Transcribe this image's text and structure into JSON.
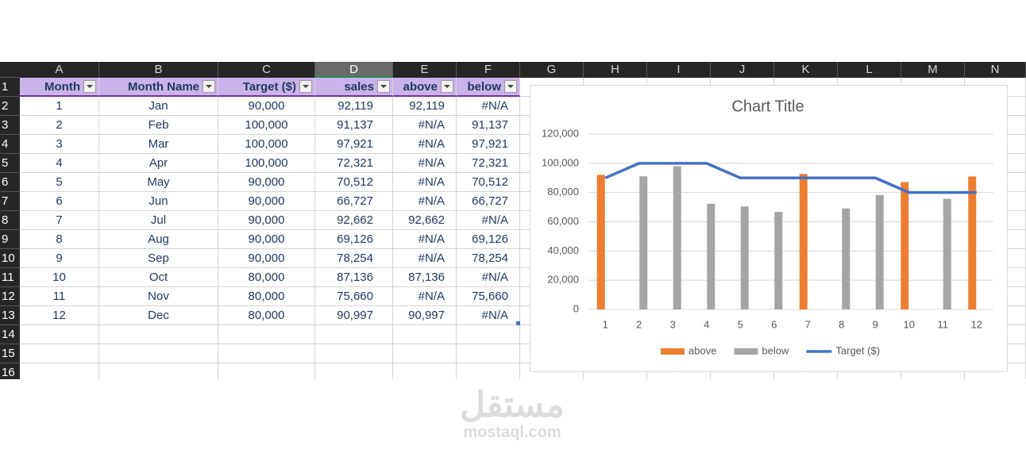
{
  "sheet": {
    "columns": [
      "A",
      "B",
      "C",
      "D",
      "E",
      "F",
      "G",
      "H",
      "I",
      "J",
      "K",
      "L",
      "M",
      "N"
    ],
    "row_numbers": [
      1,
      2,
      3,
      4,
      5,
      6,
      7,
      8,
      9,
      10,
      11,
      12,
      13,
      14,
      15,
      16
    ],
    "header": [
      "Month",
      "Month Name",
      "Target ($)",
      "sales",
      "above",
      "below"
    ],
    "rows": [
      [
        "1",
        "Jan",
        "90,000",
        "92,119",
        "92,119",
        "#N/A"
      ],
      [
        "2",
        "Feb",
        "100,000",
        "91,137",
        "#N/A",
        "91,137"
      ],
      [
        "3",
        "Mar",
        "100,000",
        "97,921",
        "#N/A",
        "97,921"
      ],
      [
        "4",
        "Apr",
        "100,000",
        "72,321",
        "#N/A",
        "72,321"
      ],
      [
        "5",
        "May",
        "90,000",
        "70,512",
        "#N/A",
        "70,512"
      ],
      [
        "6",
        "Jun",
        "90,000",
        "66,727",
        "#N/A",
        "66,727"
      ],
      [
        "7",
        "Jul",
        "90,000",
        "92,662",
        "92,662",
        "#N/A"
      ],
      [
        "8",
        "Aug",
        "90,000",
        "69,126",
        "#N/A",
        "69,126"
      ],
      [
        "9",
        "Sep",
        "90,000",
        "78,254",
        "#N/A",
        "78,254"
      ],
      [
        "10",
        "Oct",
        "80,000",
        "87,136",
        "87,136",
        "#N/A"
      ],
      [
        "11",
        "Nov",
        "80,000",
        "75,660",
        "#N/A",
        "75,660"
      ],
      [
        "12",
        "Dec",
        "80,000",
        "90,997",
        "90,997",
        "#N/A"
      ]
    ]
  },
  "chart_data": {
    "type": "bar",
    "title": "Chart Title",
    "categories": [
      1,
      2,
      3,
      4,
      5,
      6,
      7,
      8,
      9,
      10,
      11,
      12
    ],
    "series": [
      {
        "name": "above",
        "color": "#ed7d31",
        "values": [
          92119,
          null,
          null,
          null,
          null,
          null,
          92662,
          null,
          null,
          87136,
          null,
          90997
        ]
      },
      {
        "name": "below",
        "color": "#a5a5a5",
        "values": [
          null,
          91137,
          97921,
          72321,
          70512,
          66727,
          null,
          69126,
          78254,
          null,
          75660,
          null
        ]
      },
      {
        "name": "Target ($)",
        "color": "#4472c4",
        "type": "line",
        "values": [
          90000,
          100000,
          100000,
          100000,
          90000,
          90000,
          90000,
          90000,
          90000,
          80000,
          80000,
          80000
        ]
      }
    ],
    "ylim": [
      0,
      120000
    ],
    "yticks": [
      0,
      {
        "value": 20000,
        "label": "20,000"
      },
      {
        "value": 40000,
        "label": "40,000"
      },
      {
        "value": 60000,
        "label": "60,000"
      },
      {
        "value": 80000,
        "label": "80,000"
      },
      {
        "value": 100000,
        "label": "100,000"
      },
      {
        "value": 120000,
        "label": "120,000"
      }
    ],
    "grid": true,
    "legend": "bottom"
  },
  "watermark": {
    "arabic": "مستقل",
    "latin": "mostaql.com"
  }
}
